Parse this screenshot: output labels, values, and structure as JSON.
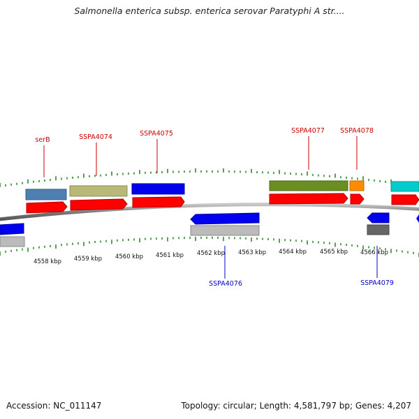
{
  "title": "Salmonella enterica subsp. enterica serovar Paratyphi A str....",
  "footer": {
    "accession": "Accession: NC_011147",
    "summary": "Topology: circular; Length: 4,581,797 bp; Genes: 4,207"
  },
  "scale_ticks": [
    {
      "label": "4558 kbp"
    },
    {
      "label": "4559 kbp"
    },
    {
      "label": "4560 kbp"
    },
    {
      "label": "4561 kbp"
    },
    {
      "label": "4562 kbp"
    },
    {
      "label": "4563 kbp"
    },
    {
      "label": "4564 kbp"
    },
    {
      "label": "4565 kbp"
    },
    {
      "label": "4566 kbp"
    }
  ],
  "gene_labels": [
    {
      "name": "serB",
      "strand": "forward"
    },
    {
      "name": "SSPA4074",
      "strand": "forward"
    },
    {
      "name": "SSPA4075",
      "strand": "forward"
    },
    {
      "name": "SSPA4077",
      "strand": "forward"
    },
    {
      "name": "SSPA4078",
      "strand": "forward"
    },
    {
      "name": "SSPA4076",
      "strand": "reverse"
    },
    {
      "name": "SSPA4079",
      "strand": "reverse"
    }
  ],
  "colors": {
    "forward_label": "#cc0000",
    "reverse_label": "#0000cc",
    "cds_forward": "#ff0000",
    "cds_reverse": "#0000ee",
    "backbone": "#888888",
    "tick": "#2e8b2e",
    "feature_blue_grey": "#4f7fb0",
    "feature_khaki": "#b8b878",
    "feature_olive": "#6b8e23",
    "feature_orange": "#ff8c00",
    "feature_cyan": "#00cccc",
    "feature_grey": "#bbbbbb",
    "feature_dark_grey": "#666666"
  }
}
